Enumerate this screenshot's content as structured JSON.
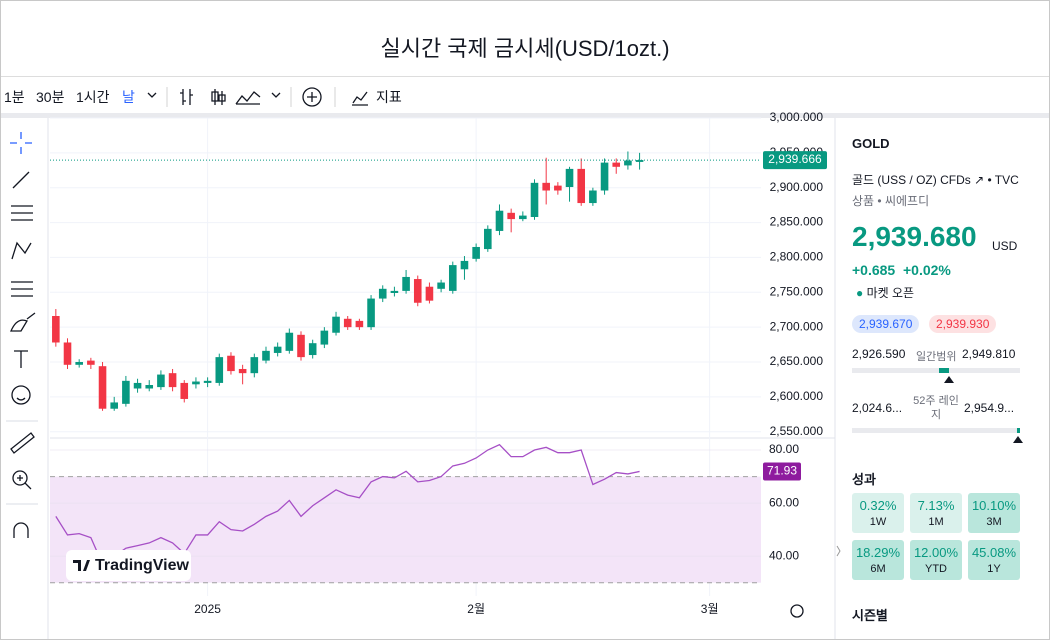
{
  "header": {
    "title": "실시간 국제 금시세(USD/1ozt.)"
  },
  "toolbar": {
    "intervals": [
      "1분",
      "30분",
      "1시간",
      "날"
    ],
    "indicators": "지표"
  },
  "branding": "TradingView",
  "chart_data": [
    {
      "type": "candlestick",
      "x": [
        0,
        1,
        2,
        3,
        4,
        5,
        6,
        7,
        8,
        9,
        10,
        11,
        12,
        13,
        14,
        15,
        16,
        17,
        18,
        19,
        20,
        21,
        22,
        23,
        24,
        25,
        26,
        27,
        28,
        29,
        30,
        31,
        32,
        33,
        34,
        35,
        36,
        37,
        38,
        39,
        40,
        41,
        42,
        43,
        44,
        45,
        46,
        47,
        48,
        49,
        50
      ],
      "open": [
        2716,
        2678,
        2646,
        2652,
        2644,
        2583,
        2590,
        2612,
        2612,
        2614,
        2634,
        2620,
        2618,
        2620,
        2620,
        2659,
        2640,
        2634,
        2652,
        2663,
        2666,
        2689,
        2660,
        2675,
        2692,
        2712,
        2709,
        2700,
        2741,
        2749,
        2752,
        2769,
        2758,
        2755,
        2752,
        2783,
        2798,
        2812,
        2838,
        2864,
        2855,
        2858,
        2907,
        2903,
        2901,
        2927,
        2878,
        2896,
        2936,
        2932,
        2937
      ],
      "high": [
        2726,
        2684,
        2654,
        2656,
        2650,
        2600,
        2630,
        2626,
        2624,
        2638,
        2640,
        2624,
        2628,
        2628,
        2662,
        2664,
        2646,
        2662,
        2672,
        2678,
        2698,
        2694,
        2682,
        2700,
        2722,
        2716,
        2712,
        2746,
        2760,
        2758,
        2782,
        2774,
        2764,
        2768,
        2794,
        2802,
        2820,
        2846,
        2876,
        2870,
        2866,
        2912,
        2943,
        2908,
        2930,
        2942,
        2900,
        2942,
        2942,
        2952,
        2950
      ],
      "low": [
        2672,
        2640,
        2642,
        2640,
        2580,
        2580,
        2586,
        2606,
        2608,
        2610,
        2608,
        2592,
        2612,
        2614,
        2616,
        2632,
        2618,
        2628,
        2648,
        2658,
        2662,
        2652,
        2655,
        2670,
        2688,
        2696,
        2696,
        2696,
        2736,
        2744,
        2748,
        2730,
        2734,
        2750,
        2748,
        2768,
        2794,
        2808,
        2832,
        2836,
        2852,
        2854,
        2876,
        2890,
        2880,
        2874,
        2874,
        2890,
        2920,
        2926,
        2926
      ],
      "close": [
        2678,
        2646,
        2650,
        2646,
        2583,
        2592,
        2623,
        2620,
        2617,
        2632,
        2614,
        2597,
        2622,
        2623,
        2657,
        2637,
        2634,
        2657,
        2666,
        2672,
        2692,
        2657,
        2677,
        2695,
        2715,
        2700,
        2700,
        2741,
        2755,
        2752,
        2772,
        2735,
        2738,
        2764,
        2789,
        2795,
        2815,
        2841,
        2867,
        2855,
        2860,
        2907,
        2896,
        2896,
        2927,
        2878,
        2896,
        2936,
        2930,
        2939,
        2939.666
      ],
      "up_color": "#089981",
      "down_color": "#f23645",
      "last_label": {
        "value": 2939.666,
        "label": "2,939.666"
      },
      "xlim": [
        -0.5,
        60.4
      ],
      "xticks": [
        {
          "value": 13,
          "label": "2025"
        },
        {
          "value": 36,
          "label": "2월"
        },
        {
          "value": 56,
          "label": "3월"
        }
      ],
      "ylim": [
        2541,
        3000
      ],
      "yticks": [
        {
          "value": 2550,
          "label": "2,550.000"
        },
        {
          "value": 2600,
          "label": "2,600.000"
        },
        {
          "value": 2650,
          "label": "2,650.000"
        },
        {
          "value": 2700,
          "label": "2,700.000"
        },
        {
          "value": 2750,
          "label": "2,750.000"
        },
        {
          "value": 2800,
          "label": "2,800.000"
        },
        {
          "value": 2850,
          "label": "2,850.000"
        },
        {
          "value": 2900,
          "label": "2,900.000"
        },
        {
          "value": 2950,
          "label": "2,950.000"
        },
        {
          "value": 3000,
          "label": "3,000.000"
        }
      ],
      "grid": true
    },
    {
      "type": "line",
      "x": [
        0,
        1,
        2,
        3,
        4,
        5,
        6,
        7,
        8,
        9,
        10,
        11,
        12,
        13,
        14,
        15,
        16,
        17,
        18,
        19,
        20,
        21,
        22,
        23,
        24,
        25,
        26,
        27,
        28,
        29,
        30,
        31,
        32,
        33,
        34,
        35,
        36,
        37,
        38,
        39,
        40,
        41,
        42,
        43,
        44,
        45,
        46,
        47,
        48,
        49,
        50
      ],
      "values": [
        55,
        48,
        48.5,
        47,
        37,
        40,
        43,
        44,
        45,
        47,
        45,
        41,
        48,
        48,
        53,
        50,
        49.5,
        52,
        55,
        57,
        61,
        55,
        59,
        62,
        65,
        63,
        62,
        68,
        70,
        69.5,
        72,
        68,
        68.5,
        70,
        74,
        75,
        77,
        80,
        82,
        77.5,
        77.5,
        80,
        81,
        79,
        79,
        80,
        67,
        69,
        71.5,
        71,
        71.93
      ],
      "color": "#a64fc6",
      "band": [
        30,
        70
      ],
      "band_color": "#f3e4f8",
      "last_label": {
        "value": 71.93,
        "label": "71.93"
      },
      "xlim": [
        -0.5,
        60.4
      ],
      "ylim": [
        25,
        83.4
      ],
      "yticks": [
        {
          "value": 40,
          "label": "40.00"
        },
        {
          "value": 60,
          "label": "60.00"
        },
        {
          "value": 80,
          "label": "80.00"
        }
      ],
      "grid": true
    }
  ],
  "sidebar": {
    "symbol": "GOLD",
    "description": "골드 (USS / OZ) CFDs",
    "exchange": "TVC",
    "category": "상품",
    "subcategory": "씨에프디",
    "price": "2,939.680",
    "currency": "USD",
    "change": "+0.685",
    "change_percent": "+0.02%",
    "status": "마켓 오픈",
    "bid": "2,939.670",
    "ask": "2,939.930",
    "day_low": "2,926.590",
    "day_range_label": "일간범위",
    "day_high": "2,949.810",
    "week52_low": "2,024.6...",
    "week52_label": "52주 레인지",
    "week52_high": "2,954.9...",
    "performance_title": "성과",
    "performance": [
      {
        "value": "0.32%",
        "label": "1W"
      },
      {
        "value": "7.13%",
        "label": "1M"
      },
      {
        "value": "10.10%",
        "label": "3M"
      },
      {
        "value": "18.29%",
        "label": "6M"
      },
      {
        "value": "12.00%",
        "label": "YTD"
      },
      {
        "value": "45.08%",
        "label": "1Y"
      }
    ],
    "seasonal_title": "시즌별"
  }
}
